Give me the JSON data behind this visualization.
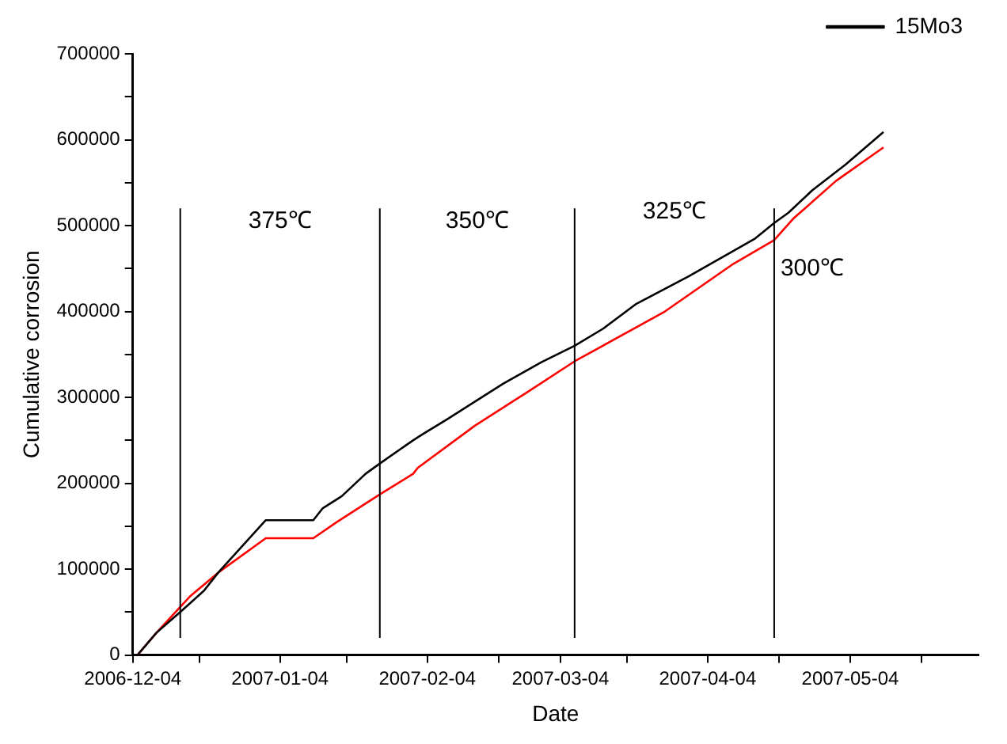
{
  "chart_data": {
    "type": "line",
    "xlabel": "Date",
    "ylabel": "Cumulative corrosion",
    "xlim": [
      "2006-12-04",
      "2007-05-31"
    ],
    "xticks": [
      "2006-12-04",
      {
        "value": "2006-12-18",
        "label": null
      },
      "2007-01-04",
      {
        "value": "2007-01-18",
        "label": null
      },
      "2007-02-04",
      {
        "value": "2007-02-19",
        "label": null
      },
      "2007-03-04",
      {
        "value": "2007-03-18",
        "label": null
      },
      "2007-04-04",
      {
        "value": "2007-04-19",
        "label": null
      },
      "2007-05-04",
      {
        "value": "2007-05-19",
        "label": null
      }
    ],
    "ylim": [
      0,
      700000
    ],
    "yticks": [
      0,
      {
        "value": 50000,
        "label": null
      },
      100000,
      {
        "value": 150000,
        "label": null
      },
      200000,
      {
        "value": 250000,
        "label": null
      },
      300000,
      {
        "value": 350000,
        "label": null
      },
      400000,
      {
        "value": 450000,
        "label": null
      },
      500000,
      {
        "value": 550000,
        "label": null
      },
      600000,
      {
        "value": 650000,
        "label": null
      },
      700000
    ],
    "grid": false,
    "legend": "top right",
    "marker": "none",
    "line_style": "solid",
    "series": [
      {
        "name": "15Mo3",
        "color": "#000000",
        "x": [
          "2006-12-05",
          "2006-12-09",
          "2006-12-14",
          "2006-12-19",
          "2006-12-22",
          "2007-01-01",
          "2007-01-11",
          "2007-01-13",
          "2007-01-17",
          "2007-01-22",
          "2007-01-25",
          "2007-02-01",
          "2007-02-03",
          "2007-02-08",
          "2007-02-20",
          "2007-02-28",
          "2007-03-07",
          "2007-03-13",
          "2007-03-20",
          "2007-03-31",
          "2007-04-14",
          "2007-04-18",
          "2007-04-21",
          "2007-04-26",
          "2007-05-03",
          "2007-05-11"
        ],
        "values": [
          0,
          26000,
          50000,
          75000,
          96000,
          157000,
          157000,
          171000,
          185000,
          211000,
          223000,
          250000,
          257000,
          274000,
          316000,
          341000,
          360000,
          380000,
          409000,
          441000,
          485000,
          503000,
          515000,
          541000,
          571000,
          609000
        ]
      },
      {
        "color": "#ff0000",
        "x": [
          "2006-12-05",
          "2006-12-09",
          "2006-12-16",
          "2006-12-22",
          "2007-01-01",
          "2007-01-11",
          "2007-01-16",
          "2007-01-25",
          "2007-02-01",
          "2007-02-02",
          "2007-02-14",
          "2007-02-25",
          "2007-03-07",
          "2007-03-26",
          "2007-04-09",
          "2007-04-18",
          "2007-04-22",
          "2007-05-01",
          "2007-05-11"
        ],
        "values": [
          0,
          26000,
          68000,
          96000,
          136000,
          136000,
          155000,
          187000,
          211000,
          218000,
          267000,
          306000,
          342000,
          400000,
          454000,
          483000,
          508000,
          552000,
          591000
        ]
      }
    ],
    "ref_lines": [
      {
        "axis": "x",
        "value": "2006-12-14",
        "color": "#000000"
      },
      {
        "axis": "x",
        "value": "2007-01-25",
        "color": "#000000"
      },
      {
        "axis": "x",
        "value": "2007-03-07",
        "color": "#000000"
      },
      {
        "axis": "x",
        "value": "2007-04-18",
        "color": "#000000"
      }
    ],
    "annotations": [
      "375℃",
      "350℃",
      "325℃",
      "300℃"
    ]
  }
}
